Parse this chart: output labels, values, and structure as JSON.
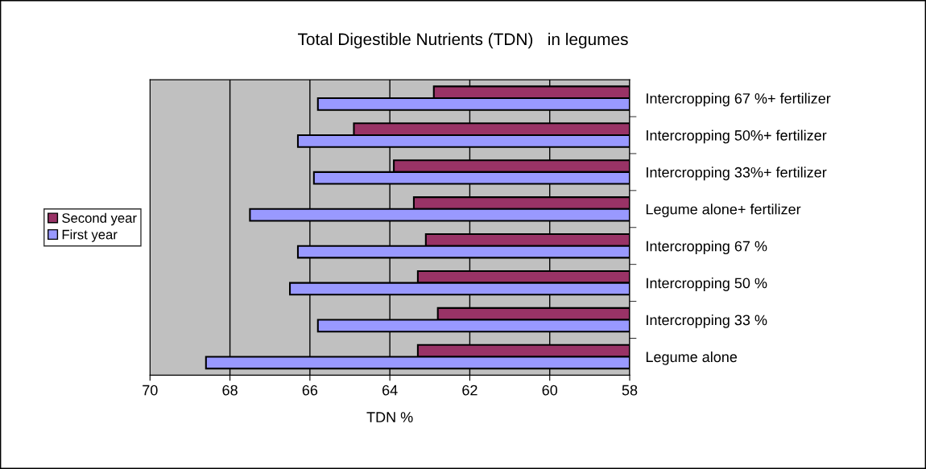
{
  "chart_data": {
    "type": "bar",
    "orientation": "horizontal",
    "title": "Total Digestible Nutrients (TDN)   in legumes",
    "xlabel": "TDN %",
    "categories": [
      "Intercropping 67 %+ fertilizer",
      "Intercropping 50%+ fertilizer",
      "Intercropping 33%+ fertilizer",
      "Legume alone+ fertilizer",
      "Intercropping 67 %",
      "Intercropping 50 %",
      "Intercropping 33 %",
      "Legume alone"
    ],
    "series": [
      {
        "name": "Second year",
        "color": "#993366",
        "values": [
          62.9,
          64.9,
          63.9,
          63.4,
          63.1,
          63.3,
          62.8,
          63.3
        ]
      },
      {
        "name": "First year",
        "color": "#9999ff",
        "values": [
          65.8,
          66.3,
          65.9,
          67.5,
          66.3,
          66.5,
          65.8,
          68.6
        ]
      }
    ],
    "xlim": [
      70,
      58
    ],
    "xticks": [
      70,
      68,
      66,
      64,
      62,
      60,
      58
    ],
    "grid": "x",
    "legend": "left"
  }
}
